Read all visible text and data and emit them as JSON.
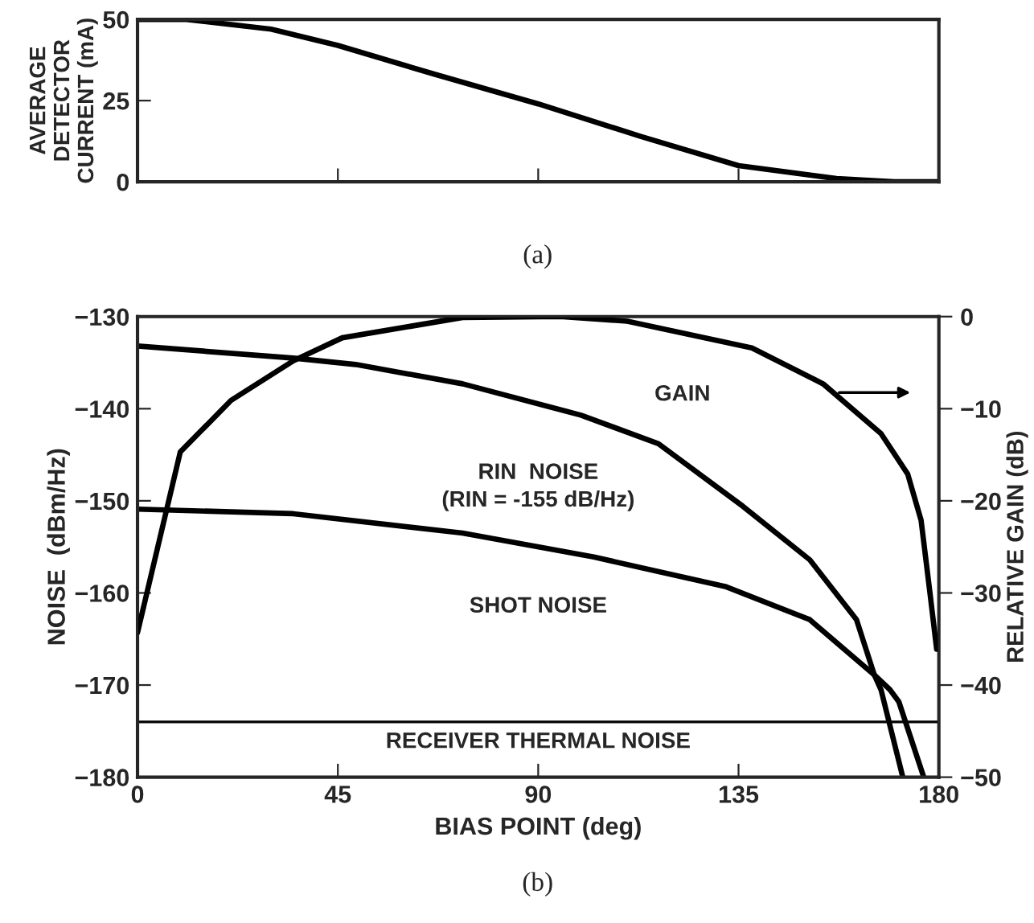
{
  "chart_data": [
    {
      "type": "line",
      "ylabel": "AVERAGE\nDETECTOR\nCURRENT (mA)",
      "annotations": [
        "(a)"
      ],
      "xlim": [
        0,
        180
      ],
      "xticks": [
        {
          "value": 45,
          "label": null
        },
        {
          "value": 90,
          "label": null
        },
        {
          "value": 135,
          "label": null
        }
      ],
      "ylim": [
        0,
        50
      ],
      "yticks": [
        0,
        25,
        50
      ],
      "tick_labels": "y",
      "grid": false,
      "legend": false,
      "series": [
        {
          "color": "#000000",
          "x": [
            0,
            11,
            30,
            45,
            67,
            90,
            113,
            135,
            157,
            170,
            180
          ],
          "values": [
            50,
            50,
            47,
            42,
            33,
            24,
            14,
            5,
            1,
            0,
            0
          ]
        }
      ]
    },
    {
      "type": "line",
      "xlabel": "BIAS POINT (deg)",
      "ylabel": "NOISE  (dBm/Hz)",
      "y2label": "RELATIVE GAIN (dB)",
      "annotations": [
        "(RIN = -155 dB/Hz)",
        "(b)"
      ],
      "xlim": [
        0,
        180
      ],
      "xticks": [
        0,
        45,
        90,
        135,
        180
      ],
      "ylim": [
        -180,
        -130
      ],
      "yticks": [
        -180,
        -170,
        -160,
        -150,
        -140,
        -130
      ],
      "y2lim": [
        -50,
        0
      ],
      "y2ticks": [
        -50,
        -40,
        -30,
        -20,
        -10,
        0
      ],
      "grid": false,
      "legend": false,
      "ref_lines": [
        {
          "axis": "y",
          "value": -174,
          "label": "RECEIVER THERMAL NOISE",
          "color": "#000000"
        }
      ],
      "series": [
        {
          "name": "GAIN",
          "axis": "y2",
          "color": "#000000",
          "x": [
            0,
            9.6,
            21,
            35,
            46,
            73,
            95,
            110,
            138,
            154,
            167,
            173,
            176,
            178,
            179.5
          ],
          "values": [
            -34.3,
            -14.7,
            -9.1,
            -4.8,
            -2.3,
            -0.1,
            0,
            -0.5,
            -3.4,
            -7.3,
            -12.7,
            -17.1,
            -22.1,
            -30,
            -36.1
          ]
        },
        {
          "name": "RIN  NOISE",
          "color": "#000000",
          "x": [
            0,
            35,
            49,
            73,
            99.6,
            117,
            136,
            151,
            161.5,
            165.5,
            167,
            171.9
          ],
          "values": [
            -133.2,
            -134.5,
            -135.2,
            -137.3,
            -140.7,
            -143.8,
            -150.6,
            -156.4,
            -162.9,
            -168.9,
            -170.5,
            -180
          ]
        },
        {
          "name": "SHOT NOISE",
          "color": "#000000",
          "x": [
            0,
            35,
            73,
            102.5,
            132,
            151,
            165.5,
            169,
            171,
            176.6
          ],
          "values": [
            -150.9,
            -151.4,
            -153.5,
            -156.1,
            -159.3,
            -162.9,
            -168.9,
            -170.5,
            -171.8,
            -180
          ]
        }
      ]
    }
  ]
}
